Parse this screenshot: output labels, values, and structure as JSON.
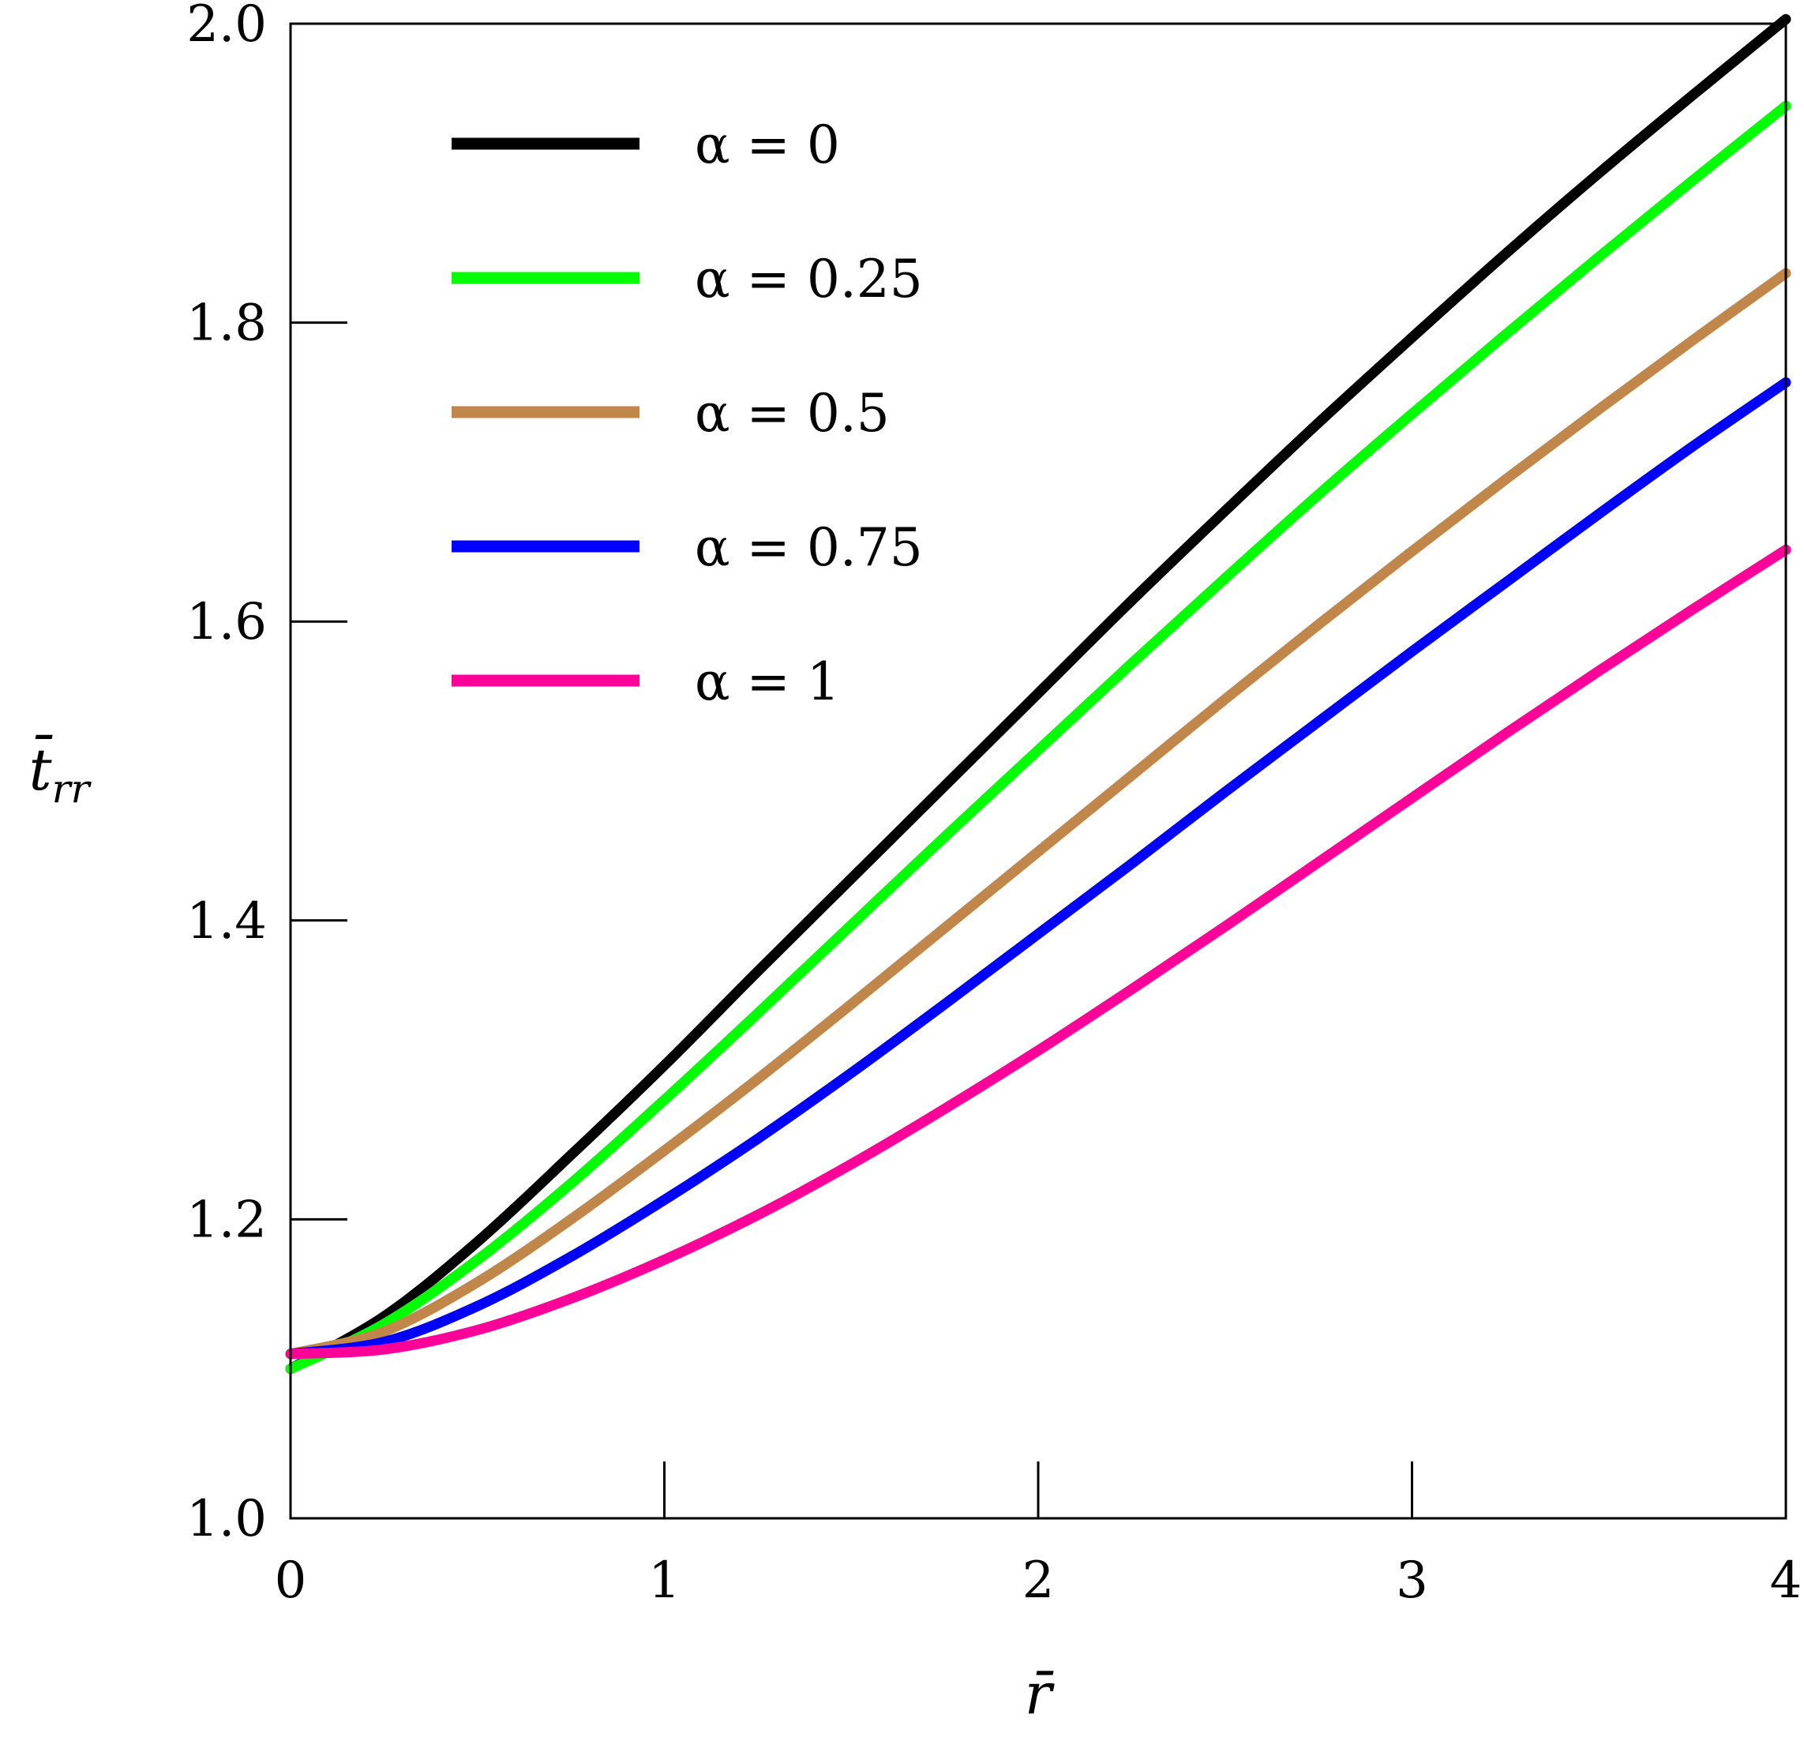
{
  "chart_data": {
    "type": "line",
    "xlabel": "r̄",
    "ylabel": {
      "base": "t̄",
      "sub": "rr"
    },
    "xlim": [
      0,
      4
    ],
    "ylim": [
      1.0,
      2.0
    ],
    "xticks": [
      "0",
      "1",
      "2",
      "3",
      "4"
    ],
    "yticks": [
      "1.0",
      "1.2",
      "1.4",
      "1.6",
      "1.8",
      "2.0"
    ],
    "grid": false,
    "legend_position": "top-left",
    "x": [
      0,
      0.25,
      0.5,
      0.75,
      1.0,
      1.25,
      1.5,
      1.75,
      2.0,
      2.25,
      2.5,
      2.75,
      3.0,
      3.25,
      3.5,
      3.75,
      4.0
    ],
    "series": [
      {
        "name": "α = 0",
        "color": "#000000",
        "values": [
          1.1,
          1.135,
          1.185,
          1.243,
          1.303,
          1.366,
          1.428,
          1.49,
          1.552,
          1.614,
          1.674,
          1.733,
          1.79,
          1.846,
          1.9,
          1.952,
          2.003
        ]
      },
      {
        "name": "α = 0.25",
        "color": "#00ff00",
        "values": [
          1.1,
          1.13,
          1.173,
          1.224,
          1.28,
          1.338,
          1.397,
          1.456,
          1.514,
          1.572,
          1.629,
          1.685,
          1.739,
          1.792,
          1.844,
          1.895,
          1.945
        ]
      },
      {
        "name": "α = 0.5",
        "color": "#c0864a",
        "values": [
          1.11,
          1.125,
          1.158,
          1.2,
          1.246,
          1.294,
          1.344,
          1.395,
          1.446,
          1.497,
          1.548,
          1.598,
          1.647,
          1.695,
          1.742,
          1.788,
          1.833
        ]
      },
      {
        "name": "α = 0.75",
        "color": "#0000ff",
        "values": [
          1.11,
          1.118,
          1.142,
          1.175,
          1.213,
          1.254,
          1.298,
          1.344,
          1.391,
          1.438,
          1.486,
          1.533,
          1.58,
          1.626,
          1.672,
          1.717,
          1.76
        ]
      },
      {
        "name": "α = 1",
        "color": "#ff0099",
        "values": [
          1.11,
          1.113,
          1.126,
          1.147,
          1.173,
          1.203,
          1.237,
          1.274,
          1.313,
          1.354,
          1.396,
          1.439,
          1.482,
          1.525,
          1.567,
          1.608,
          1.648
        ]
      }
    ]
  }
}
